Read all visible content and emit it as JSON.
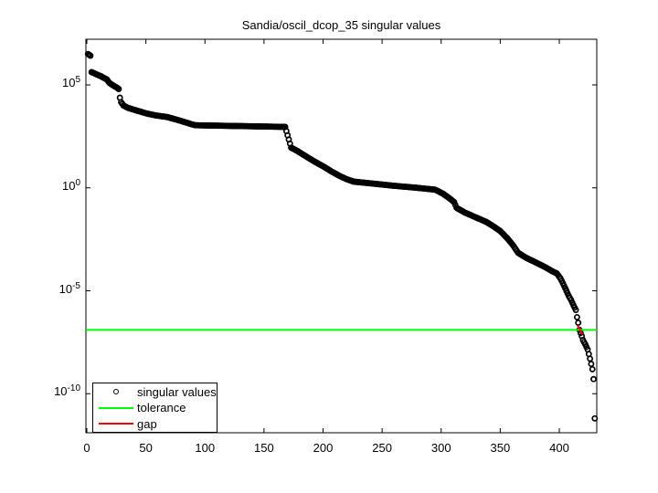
{
  "figure": {
    "background": "#ffffff"
  },
  "chart_data": {
    "type": "scatter",
    "title": "Sandia/oscil_dcop_35 singular values",
    "x_axis": {
      "ticks": [
        0,
        50,
        100,
        150,
        200,
        250,
        300,
        350,
        400
      ],
      "range": [
        0,
        432
      ]
    },
    "y_axis": {
      "scale": "log10",
      "base": "10",
      "tick_exponents": [
        5,
        0,
        -5,
        -10
      ],
      "range_exponents": [
        7.2,
        -11.9
      ]
    },
    "n_points": 430,
    "series": [
      {
        "name": "singular values",
        "marker": "o",
        "color": "#000000",
        "anchors_n_log10": [
          [
            1,
            6.5
          ],
          [
            2,
            6.46
          ],
          [
            3,
            6.42
          ],
          [
            4,
            5.62
          ],
          [
            8,
            5.52
          ],
          [
            12,
            5.42
          ],
          [
            17,
            5.26
          ],
          [
            19,
            5.1
          ],
          [
            23,
            4.95
          ],
          [
            26,
            4.85
          ],
          [
            27,
            4.8
          ],
          [
            28,
            4.38
          ],
          [
            29,
            4.16
          ],
          [
            31,
            4.0
          ],
          [
            35,
            3.88
          ],
          [
            42,
            3.76
          ],
          [
            50,
            3.62
          ],
          [
            58,
            3.52
          ],
          [
            68,
            3.44
          ],
          [
            78,
            3.28
          ],
          [
            88,
            3.1
          ],
          [
            92,
            3.04
          ],
          [
            130,
            3.0
          ],
          [
            168,
            2.96
          ],
          [
            170,
            2.55
          ],
          [
            171,
            2.35
          ],
          [
            173,
            1.95
          ],
          [
            178,
            1.8
          ],
          [
            185,
            1.55
          ],
          [
            192,
            1.3
          ],
          [
            200,
            1.05
          ],
          [
            207,
            0.8
          ],
          [
            214,
            0.58
          ],
          [
            220,
            0.42
          ],
          [
            226,
            0.3
          ],
          [
            240,
            0.22
          ],
          [
            260,
            0.1
          ],
          [
            280,
            0.0
          ],
          [
            295,
            -0.09
          ],
          [
            302,
            -0.3
          ],
          [
            308,
            -0.55
          ],
          [
            311,
            -0.7
          ],
          [
            313,
            -0.97
          ],
          [
            320,
            -1.2
          ],
          [
            330,
            -1.45
          ],
          [
            338,
            -1.65
          ],
          [
            344,
            -1.86
          ],
          [
            350,
            -2.1
          ],
          [
            356,
            -2.45
          ],
          [
            361,
            -2.8
          ],
          [
            365,
            -3.15
          ],
          [
            372,
            -3.4
          ],
          [
            380,
            -3.62
          ],
          [
            388,
            -3.85
          ],
          [
            394,
            -4.05
          ],
          [
            398,
            -4.16
          ],
          [
            401,
            -4.4
          ],
          [
            404,
            -4.75
          ],
          [
            406,
            -5.0
          ],
          [
            408,
            -5.25
          ],
          [
            410,
            -5.45
          ],
          [
            412,
            -5.7
          ],
          [
            414,
            -5.93
          ],
          [
            415,
            -6.28
          ],
          [
            416,
            -6.55
          ],
          [
            417,
            -6.9
          ],
          [
            418,
            -7.05
          ],
          [
            419,
            -7.2
          ],
          [
            420,
            -7.39
          ],
          [
            422,
            -7.6
          ],
          [
            424,
            -7.85
          ],
          [
            426,
            -8.3
          ],
          [
            427,
            -8.55
          ],
          [
            428,
            -8.81
          ],
          [
            429,
            -9.29
          ],
          [
            430,
            -11.2
          ]
        ]
      }
    ],
    "tolerance": {
      "label": "tolerance",
      "color": "#00ff00",
      "log10_value": -6.9
    },
    "gap": {
      "label": "gap",
      "color": "#ff0000",
      "segment": {
        "n_start": 415.5,
        "n_end": 419.5,
        "log10_start": -6.68,
        "log10_end": -7.12
      }
    },
    "legend": [
      {
        "label": "singular values",
        "symbol": "circle-marker",
        "color": "#000000"
      },
      {
        "label": "tolerance",
        "symbol": "line",
        "color": "#00ff00"
      },
      {
        "label": "gap",
        "symbol": "line",
        "color": "#ff0000"
      }
    ]
  }
}
